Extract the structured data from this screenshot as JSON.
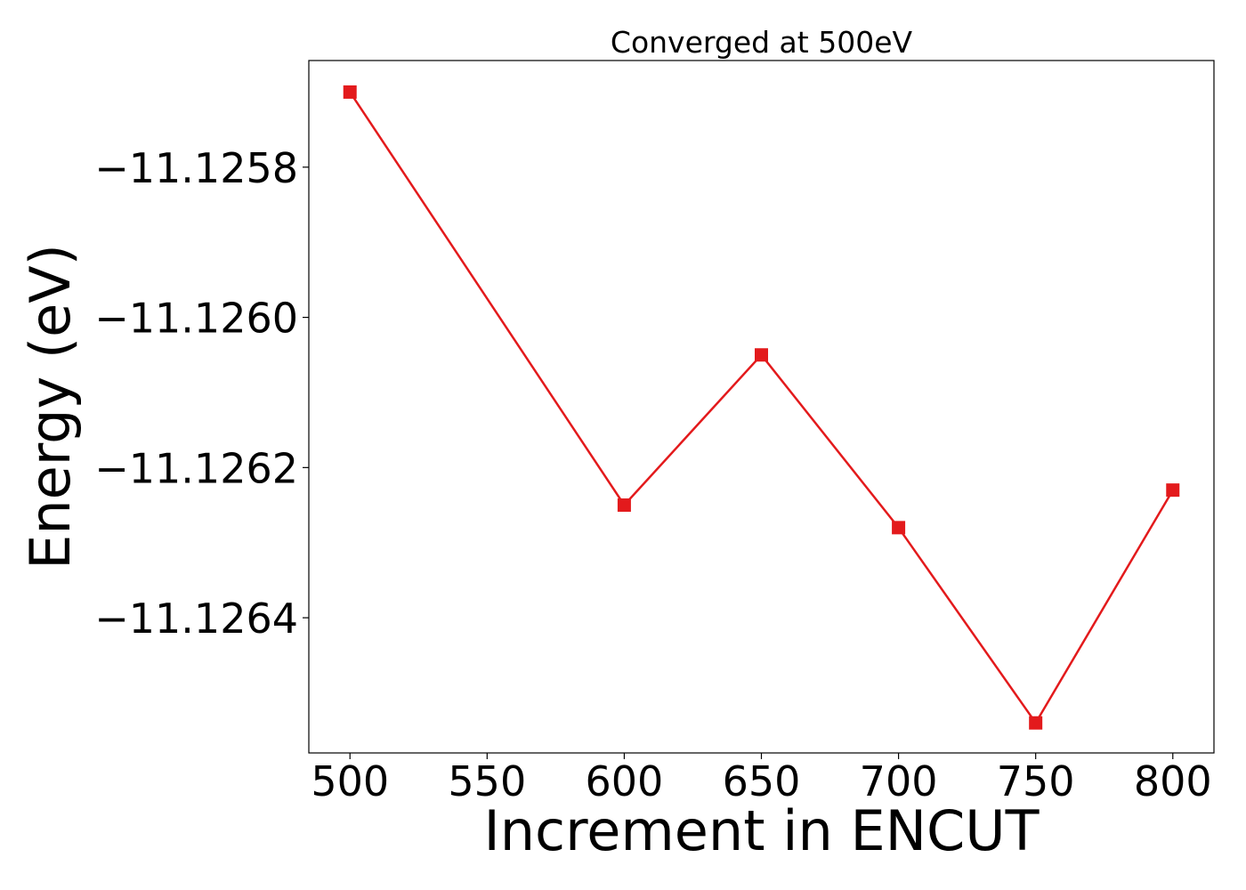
{
  "chart_data": {
    "type": "line",
    "title": "Converged at 500eV",
    "xlabel": "Increment in ENCUT",
    "ylabel": "Energy (eV)",
    "x": [
      500,
      600,
      650,
      700,
      750,
      800
    ],
    "series": [
      {
        "values": [
          -11.1257,
          -11.12625,
          -11.12605,
          -11.12628,
          -11.12654,
          -11.12623
        ],
        "color": "#e31a1c",
        "marker": "square"
      }
    ],
    "xlim": [
      485,
      815
    ],
    "ylim": [
      -11.12658,
      -11.125658
    ],
    "xticks": [
      500,
      550,
      600,
      650,
      700,
      750,
      800
    ],
    "xtick_labels": [
      "500",
      "550",
      "600",
      "650",
      "700",
      "750",
      "800"
    ],
    "yticks": [
      -11.1258,
      -11.126,
      -11.1262,
      -11.1264
    ],
    "ytick_labels": [
      "−11.1258",
      "−11.1260",
      "−11.1262",
      "−11.1264"
    ],
    "grid": false,
    "legend": "none"
  }
}
